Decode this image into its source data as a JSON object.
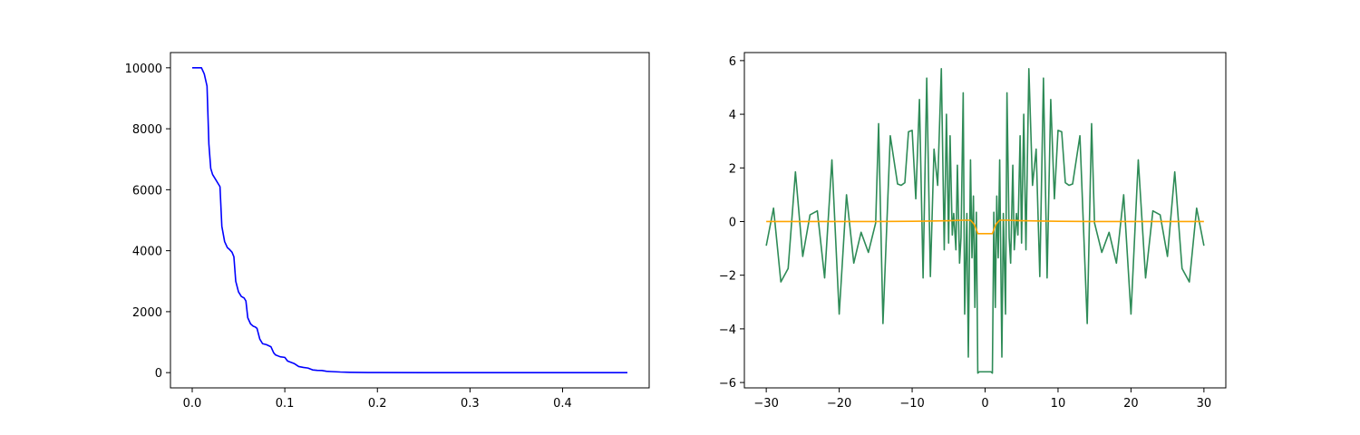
{
  "chart_data": [
    {
      "type": "line",
      "title": "",
      "xlabel": "",
      "ylabel": "",
      "xlim": [
        -0.0235,
        0.4935
      ],
      "ylim": [
        -500,
        10500
      ],
      "xticks": [
        0.0,
        0.1,
        0.2,
        0.3,
        0.4
      ],
      "xtick_labels": [
        "0.0",
        "0.1",
        "0.2",
        "0.3",
        "0.4"
      ],
      "yticks": [
        0,
        2000,
        4000,
        6000,
        8000,
        10000
      ],
      "ytick_labels": [
        "0",
        "2000",
        "4000",
        "6000",
        "8000",
        "10000"
      ],
      "grid": false,
      "series": [
        {
          "color": "#0000ff",
          "x": [
            0.0,
            0.01,
            0.013,
            0.016,
            0.018,
            0.02,
            0.022,
            0.025,
            0.028,
            0.03,
            0.032,
            0.035,
            0.038,
            0.04,
            0.043,
            0.045,
            0.047,
            0.05,
            0.053,
            0.056,
            0.058,
            0.06,
            0.063,
            0.066,
            0.068,
            0.07,
            0.073,
            0.076,
            0.08,
            0.085,
            0.088,
            0.09,
            0.095,
            0.1,
            0.103,
            0.11,
            0.115,
            0.12,
            0.125,
            0.13,
            0.135,
            0.14,
            0.145,
            0.15,
            0.16,
            0.17,
            0.18,
            0.19,
            0.2,
            0.25,
            0.3,
            0.35,
            0.4,
            0.47
          ],
          "y": [
            10000,
            10000,
            9800,
            9400,
            7500,
            6700,
            6500,
            6350,
            6200,
            6100,
            4800,
            4300,
            4100,
            4050,
            3950,
            3800,
            3000,
            2650,
            2500,
            2450,
            2350,
            1800,
            1600,
            1520,
            1500,
            1450,
            1100,
            950,
            920,
            850,
            650,
            580,
            520,
            500,
            380,
            300,
            200,
            170,
            150,
            90,
            75,
            70,
            45,
            35,
            20,
            12,
            8,
            4,
            2,
            0,
            0,
            0,
            0,
            0
          ]
        }
      ]
    },
    {
      "type": "line",
      "title": "",
      "xlabel": "",
      "ylabel": "",
      "xlim": [
        -33,
        33
      ],
      "ylim": [
        -6.2,
        6.3
      ],
      "xticks": [
        -30,
        -20,
        -10,
        0,
        10,
        20,
        30
      ],
      "xtick_labels": [
        "−30",
        "−20",
        "−10",
        "0",
        "10",
        "20",
        "30"
      ],
      "yticks": [
        -6,
        -4,
        -2,
        0,
        2,
        4,
        6
      ],
      "ytick_labels": [
        "−6",
        "−4",
        "−2",
        "0",
        "2",
        "4",
        "6"
      ],
      "grid": false,
      "series": [
        {
          "color": "#2e8b57",
          "x": [
            -30,
            -29,
            -28,
            -27,
            -26,
            -25,
            -24,
            -23,
            -22,
            -21,
            -20,
            -19,
            -18,
            -17,
            -16,
            -15,
            -14.6,
            -14,
            -13,
            -12,
            -11.5,
            -11,
            -10.5,
            -10,
            -9.5,
            -9,
            -8.5,
            -8,
            -7.5,
            -7,
            -6.5,
            -6,
            -5.6,
            -5.3,
            -5,
            -4.8,
            -4.5,
            -4.3,
            -4,
            -3.8,
            -3.5,
            -3.3,
            -3,
            -2.8,
            -2.5,
            -2.3,
            -2,
            -1.8,
            -1.6,
            -1.4,
            -1.2,
            -1,
            -0.8,
            -0.6,
            0,
            0.6,
            0.8,
            1,
            1.2,
            1.4,
            1.6,
            1.8,
            2,
            2.3,
            2.5,
            2.8,
            3,
            3.3,
            3.5,
            3.8,
            4,
            4.3,
            4.5,
            4.8,
            5,
            5.3,
            5.6,
            6,
            6.5,
            7,
            7.5,
            8,
            8.5,
            9,
            9.5,
            10,
            10.5,
            11,
            11.5,
            12,
            13,
            14,
            14.6,
            15,
            16,
            17,
            18,
            19,
            20,
            21,
            22,
            23,
            24,
            25,
            26,
            27,
            28,
            29,
            30
          ],
          "y": [
            -0.9,
            0.5,
            -2.25,
            -1.75,
            1.85,
            -1.3,
            0.25,
            0.4,
            -2.1,
            2.3,
            -3.45,
            1.0,
            -1.55,
            -0.4,
            -1.15,
            -0.05,
            3.65,
            -3.8,
            3.2,
            1.4,
            1.35,
            1.45,
            3.35,
            3.4,
            0.85,
            4.55,
            -2.1,
            5.35,
            -2.05,
            2.7,
            1.35,
            5.7,
            -1.05,
            4.0,
            -0.8,
            3.2,
            -0.5,
            0.3,
            -1.05,
            2.1,
            -1.55,
            -0.6,
            4.8,
            -3.45,
            0.3,
            -5.05,
            2.3,
            -1.35,
            0.95,
            -3.2,
            0.35,
            -5.65,
            -5.6,
            -5.6,
            -5.6,
            -5.6,
            -5.6,
            -5.65,
            0.35,
            -3.2,
            0.95,
            -1.35,
            2.3,
            -5.05,
            0.3,
            -3.45,
            4.8,
            -0.6,
            -1.55,
            2.1,
            -1.05,
            0.3,
            -0.5,
            3.2,
            -0.8,
            4.0,
            -1.05,
            5.7,
            1.35,
            2.7,
            -2.05,
            5.35,
            -2.1,
            4.55,
            0.85,
            3.4,
            3.35,
            1.45,
            1.35,
            1.4,
            3.2,
            -3.8,
            3.65,
            -0.05,
            -1.15,
            -0.4,
            -1.55,
            1.0,
            -3.45,
            2.3,
            -2.1,
            0.4,
            0.25,
            -1.3,
            1.85,
            -1.75,
            -2.25,
            0.5,
            -0.9
          ]
        },
        {
          "color": "#ffa500",
          "x": [
            -30,
            -25,
            -20,
            -15,
            -10,
            -5,
            -3,
            -2,
            -1.5,
            -1.2,
            -1,
            1,
            1.2,
            1.5,
            2,
            3,
            5,
            10,
            15,
            20,
            25,
            30
          ],
          "y": [
            0,
            0,
            0,
            0,
            0.01,
            0.03,
            0.05,
            0.05,
            -0.1,
            -0.3,
            -0.45,
            -0.45,
            -0.3,
            -0.1,
            0.05,
            0.05,
            0.03,
            0.01,
            0,
            0,
            0,
            0
          ]
        }
      ]
    }
  ]
}
